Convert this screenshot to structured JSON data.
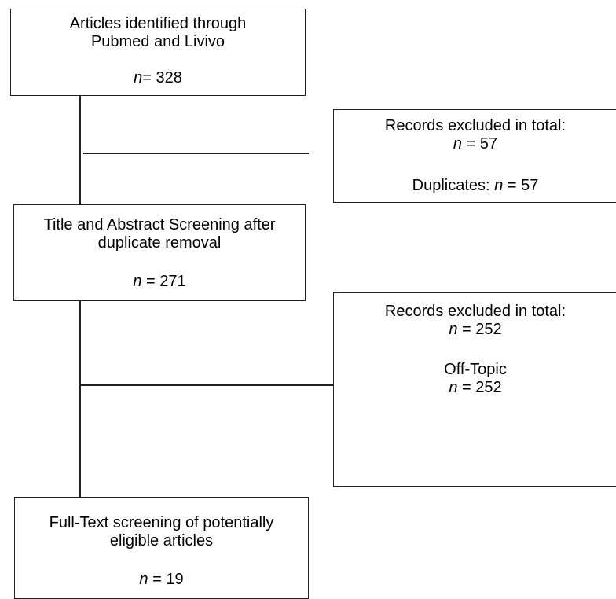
{
  "boxes": {
    "identified": {
      "line1": "Articles identified through",
      "line2": "Pubmed and Livivo",
      "n_symbol": "n",
      "n_rest": "= 328"
    },
    "excluded_duplicates": {
      "line1": "Records excluded in total:",
      "n_symbol": "n",
      "n_rest": " = 57",
      "detail_prefix": "Duplicates: ",
      "detail_n_symbol": "n",
      "detail_n_rest": " = 57"
    },
    "screening": {
      "line1": "Title and Abstract Screening after",
      "line2": "duplicate removal",
      "n_symbol": "n",
      "n_rest": " = 271"
    },
    "excluded_offtopic": {
      "line1": "Records excluded in total:",
      "n_symbol": "n",
      "n_rest": " = 252",
      "detail_label": "Off-Topic",
      "detail_n_symbol": "n",
      "detail_n_rest": " = 252"
    },
    "fulltext": {
      "line1": "Full-Text screening of potentially",
      "line2": "eligible articles",
      "n_symbol": "n",
      "n_rest": " = 19"
    }
  }
}
